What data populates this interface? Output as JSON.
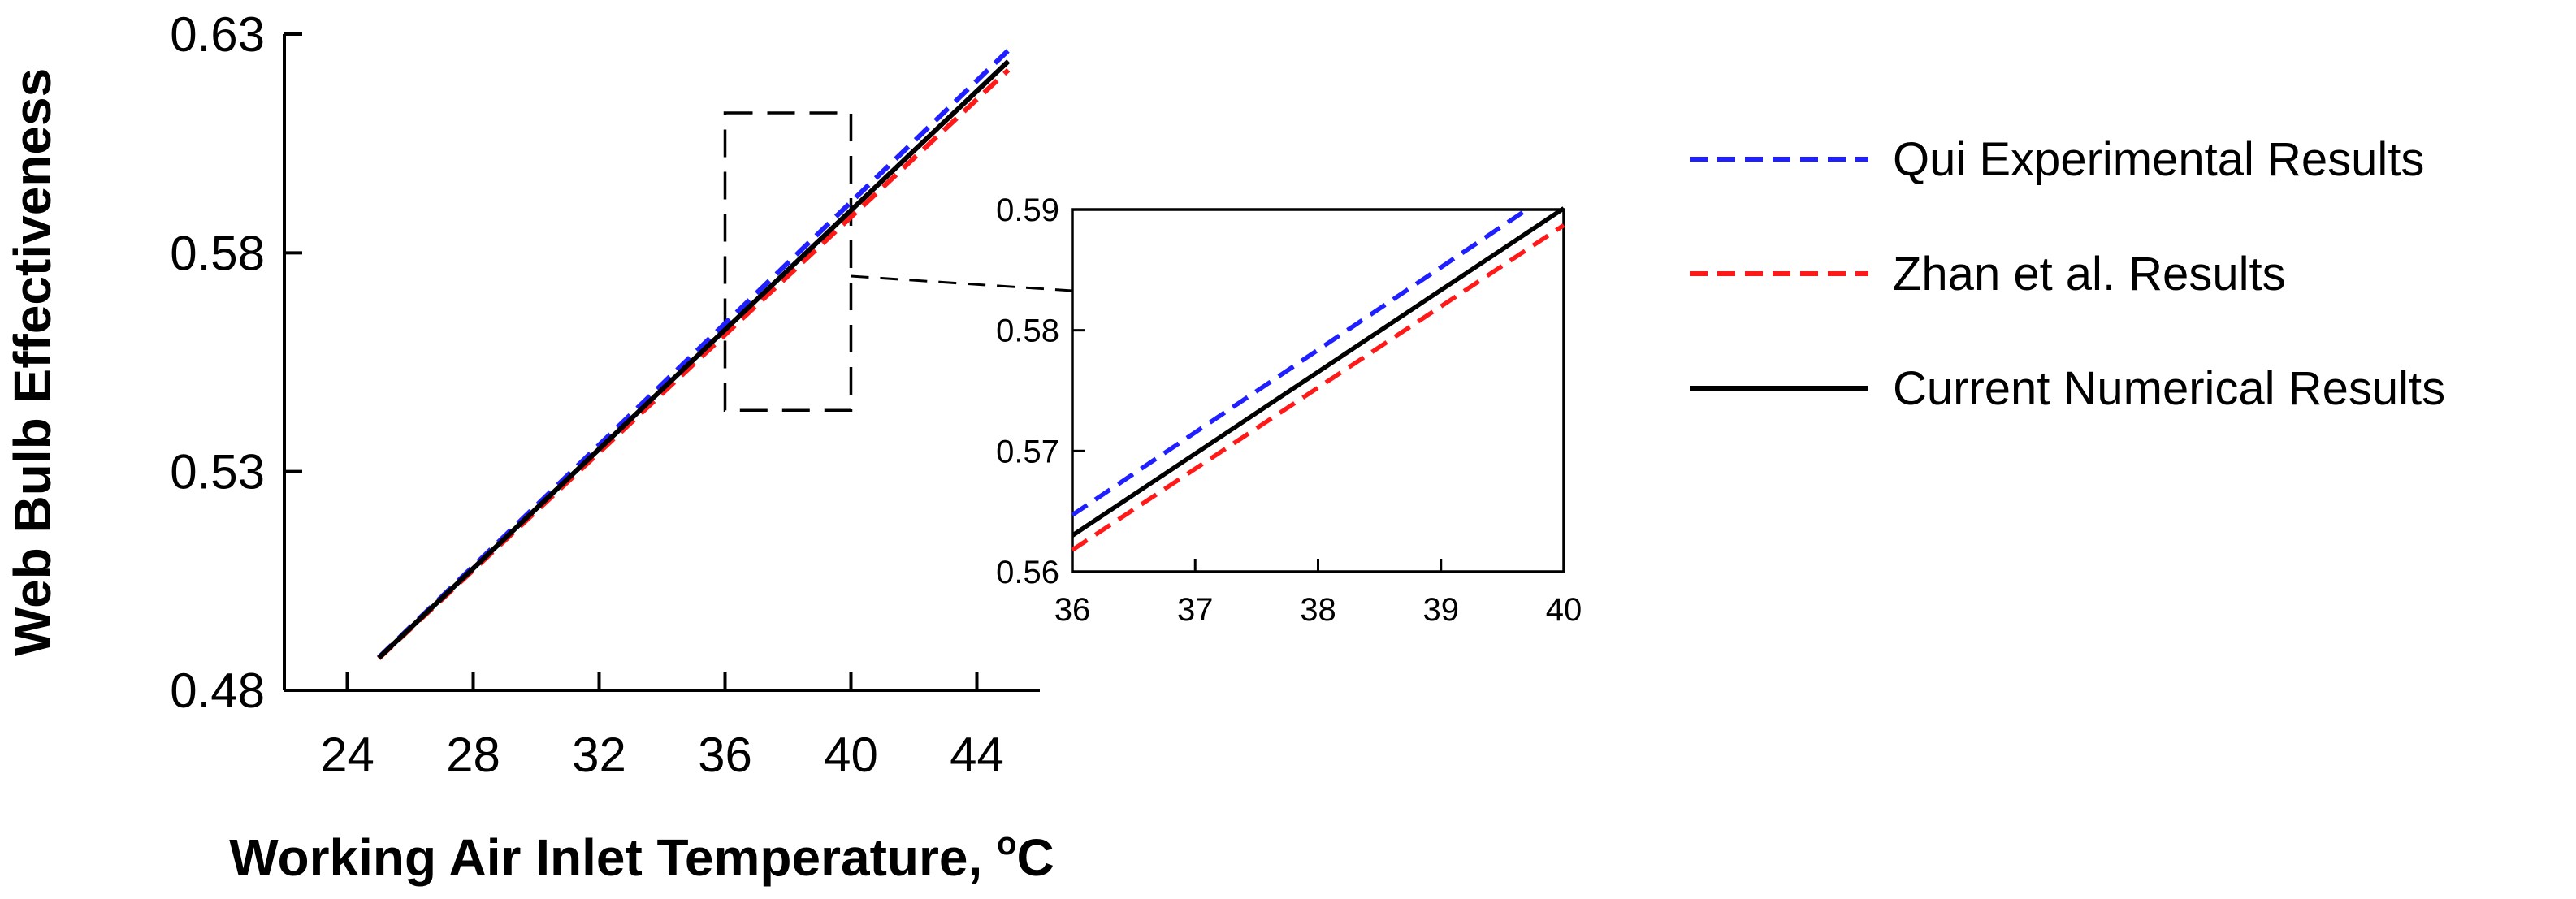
{
  "chart_data": [
    {
      "type": "line",
      "name": "main",
      "xlabel": "Working Air Inlet Temperature, ",
      "xlabel_sup": "o",
      "xlabel_suffix": "C",
      "ylabel": "Web Bulb Effectiveness",
      "xlim": [
        22,
        46
      ],
      "ylim": [
        0.48,
        0.63
      ],
      "xticks": [
        24,
        28,
        32,
        36,
        40,
        44
      ],
      "xtick_labels": [
        "24",
        "28",
        "32",
        "36",
        "40",
        "44"
      ],
      "yticks": [
        0.48,
        0.53,
        0.58,
        0.63
      ],
      "ytick_labels": [
        "0.48",
        "0.53",
        "0.58",
        "0.63"
      ],
      "zoom_box": {
        "x": [
          36,
          40
        ],
        "y": [
          0.544,
          0.612
        ]
      },
      "series": [
        {
          "name": "Qui Experimental Results",
          "color": "#1f1fff",
          "dash": true,
          "x": [
            25,
            45
          ],
          "y": [
            0.4875,
            0.6263
          ]
        },
        {
          "name": "Zhan et al. Results",
          "color": "#ff1a1a",
          "dash": true,
          "x": [
            25,
            45
          ],
          "y": [
            0.4873,
            0.6218
          ]
        },
        {
          "name": "Current Numerical Results",
          "color": "#000000",
          "dash": false,
          "x": [
            25,
            45
          ],
          "y": [
            0.4874,
            0.6238
          ]
        }
      ]
    },
    {
      "type": "line",
      "name": "inset",
      "xlim": [
        36,
        40
      ],
      "ylim": [
        0.56,
        0.59
      ],
      "xticks": [
        36,
        37,
        38,
        39,
        40
      ],
      "xtick_labels": [
        "36",
        "37",
        "38",
        "39",
        "40"
      ],
      "yticks": [
        0.56,
        0.57,
        0.58,
        0.59
      ],
      "ytick_labels": [
        "0.56",
        "0.57",
        "0.58",
        "0.59"
      ],
      "series": [
        {
          "name": "Qui Experimental Results",
          "color": "#1f1fff",
          "dash": true,
          "x": [
            36,
            39.7
          ],
          "y": [
            0.5647,
            0.59
          ]
        },
        {
          "name": "Zhan et al. Results",
          "color": "#ff1a1a",
          "dash": true,
          "x": [
            36,
            40
          ],
          "y": [
            0.5618,
            0.5887
          ]
        },
        {
          "name": "Current Numerical Results",
          "color": "#000000",
          "dash": false,
          "x": [
            36,
            40
          ],
          "y": [
            0.563,
            0.5901
          ]
        }
      ]
    }
  ],
  "legend": {
    "placement": "right",
    "items": [
      {
        "label": "Qui Experimental Results",
        "color": "#1f1fff",
        "dash": true
      },
      {
        "label": "Zhan et al. Results",
        "color": "#ff1a1a",
        "dash": true
      },
      {
        "label": "Current Numerical Results",
        "color": "#000000",
        "dash": false
      }
    ]
  }
}
